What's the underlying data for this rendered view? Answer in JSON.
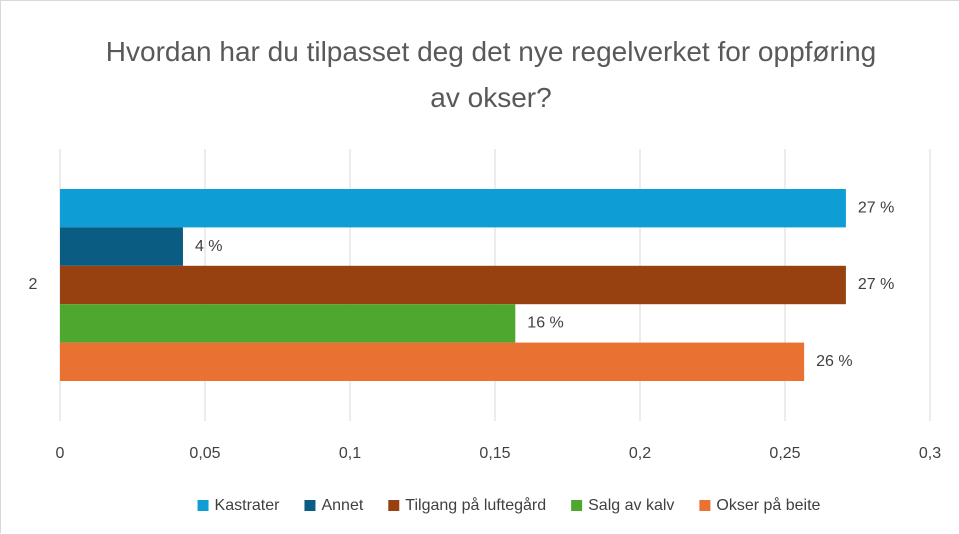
{
  "chart_data": {
    "type": "hbar",
    "title": "Hvordan har du tilpasset deg det nye regelverket for oppføring av okser?",
    "categories": [
      "2"
    ],
    "series": [
      {
        "name": "Kastrater",
        "color": "#0e9ed5",
        "values": [
          0.271
        ],
        "value_labels": [
          "27 %"
        ]
      },
      {
        "name": "Annet",
        "color": "#0b5c82",
        "values": [
          0.0424
        ],
        "value_labels": [
          "4 %"
        ]
      },
      {
        "name": "Tilgang på luftegård",
        "color": "#974010",
        "values": [
          0.271
        ],
        "value_labels": [
          "27 %"
        ]
      },
      {
        "name": "Salg av kalv",
        "color": "#4ea72e",
        "values": [
          0.157
        ],
        "value_labels": [
          "16 %"
        ]
      },
      {
        "name": "Okser på beite",
        "color": "#e97132",
        "values": [
          0.2566
        ],
        "value_labels": [
          "26 %"
        ]
      }
    ],
    "xlim": [
      0,
      0.3
    ],
    "xticks": [
      0,
      {
        "value": 0.05,
        "label": "0,05"
      },
      {
        "value": 0.1,
        "label": "0,1"
      },
      {
        "value": 0.15,
        "label": "0,15"
      },
      {
        "value": 0.2,
        "label": "0,2"
      },
      {
        "value": 0.25,
        "label": "0,25"
      },
      {
        "value": 0.3,
        "label": "0,3"
      }
    ],
    "grid": true,
    "legend": "bottom"
  }
}
